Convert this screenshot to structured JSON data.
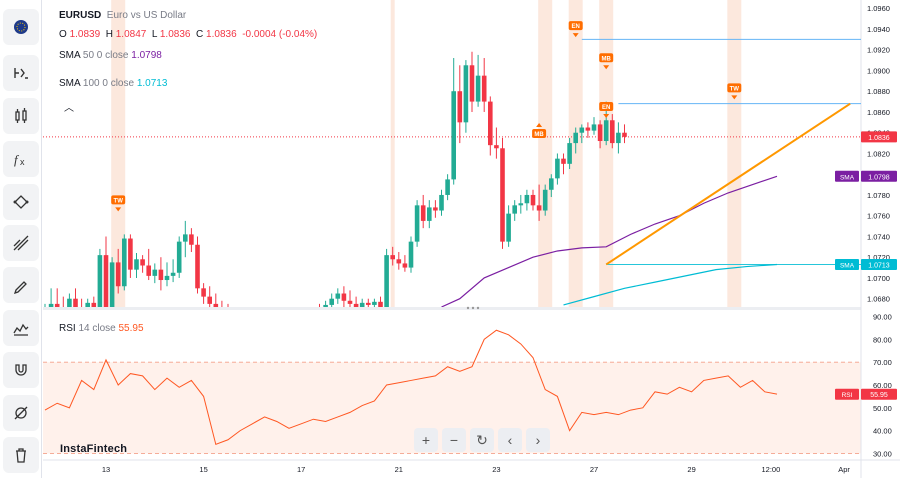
{
  "symbol": {
    "ticker": "EURUSD",
    "name": "Euro vs US Dollar",
    "flag": "eu-us-flag"
  },
  "ohlc": {
    "o_label": "O",
    "o": "1.0839",
    "h_label": "H",
    "h": "1.0847",
    "l_label": "L",
    "l": "1.0836",
    "c_label": "C",
    "c": "1.0836",
    "change": "-0.0004 (-0.04%)"
  },
  "sma50": {
    "label": "SMA",
    "params": "50 0 close",
    "value": "1.0798",
    "color": "#7b1fa2"
  },
  "sma100": {
    "label": "SMA",
    "params": "100 0 close",
    "value": "1.0713",
    "color": "#00bcd4"
  },
  "rsi": {
    "label": "RSI",
    "params": "14 close",
    "value": "55.95",
    "color": "#ff5722"
  },
  "collapse_icon": "chevron-up-icon",
  "brand": "InstaFintech",
  "sidebar_tools": [
    "flag-icon",
    "indicator-icon",
    "candles-icon",
    "fx-icon",
    "pattern-icon",
    "lines-icon",
    "brush-icon",
    "measure-icon",
    "magnet-icon",
    "hide-drawings-icon",
    "delete-icon"
  ],
  "nav_buttons": [
    "zoom-in-icon",
    "zoom-out-icon",
    "reset-icon",
    "scroll-left-icon",
    "scroll-right-icon"
  ],
  "chart_data": {
    "type": "candlestick",
    "price_ticks": [
      "1.0960",
      "1.0940",
      "1.0920",
      "1.0900",
      "1.0880",
      "1.0860",
      "1.0840",
      "1.0820",
      "1.0800",
      "1.0780",
      "1.0760",
      "1.0740",
      "1.0720",
      "1.0700",
      "1.0680"
    ],
    "price_range": [
      1.0672,
      1.0966
    ],
    "rsi_ticks": [
      "90.00",
      "80.00",
      "70.00",
      "60.00",
      "50.00",
      "40.00",
      "30.00"
    ],
    "rsi_range": [
      28,
      92
    ],
    "rsi_levels": [
      70,
      30
    ],
    "x_labels": [
      {
        "i": 10,
        "label": "13"
      },
      {
        "i": 26,
        "label": "15"
      },
      {
        "i": 42,
        "label": "17"
      },
      {
        "i": 58,
        "label": "21"
      },
      {
        "i": 74,
        "label": "23"
      },
      {
        "i": 90,
        "label": "27"
      },
      {
        "i": 106,
        "label": "29"
      },
      {
        "i": 119,
        "label": "12:00"
      },
      {
        "i": 131,
        "label": "Apr"
      }
    ],
    "last_price": {
      "value": 1.0836,
      "label": "1.0836",
      "color": "#f23645"
    },
    "sma_tags": [
      {
        "label": "SMA",
        "value": 1.0798,
        "text": "1.0798",
        "color": "#7b1fa2"
      },
      {
        "label": "SMA",
        "value": 1.0713,
        "text": "1.0713",
        "color": "#00bcd4"
      }
    ],
    "rsi_tag": {
      "label": "RSI",
      "value": 55.95,
      "text": "55.95",
      "color": "#f23645"
    },
    "candles": [
      [
        1.066,
        1.0675,
        1.0655,
        1.0668
      ],
      [
        1.0668,
        1.069,
        1.0662,
        1.0675
      ],
      [
        1.0675,
        1.069,
        1.0665,
        1.067
      ],
      [
        1.067,
        1.0682,
        1.066,
        1.0665
      ],
      [
        1.0665,
        1.0685,
        1.066,
        1.068
      ],
      [
        1.068,
        1.069,
        1.0665,
        1.067
      ],
      [
        1.067,
        1.068,
        1.065,
        1.0655
      ],
      [
        1.0655,
        1.068,
        1.065,
        1.0676
      ],
      [
        1.0676,
        1.0682,
        1.0655,
        1.066
      ],
      [
        1.066,
        1.0728,
        1.0658,
        1.0722
      ],
      [
        1.0722,
        1.074,
        1.065,
        1.066
      ],
      [
        1.066,
        1.072,
        1.065,
        1.0715
      ],
      [
        1.0715,
        1.0728,
        1.0685,
        1.0692
      ],
      [
        1.0692,
        1.0742,
        1.0688,
        1.0738
      ],
      [
        1.0738,
        1.0742,
        1.07,
        1.0708
      ],
      [
        1.0708,
        1.0724,
        1.07,
        1.0718
      ],
      [
        1.0718,
        1.0722,
        1.0705,
        1.0712
      ],
      [
        1.0712,
        1.0728,
        1.0698,
        1.0702
      ],
      [
        1.0702,
        1.0714,
        1.0695,
        1.0708
      ],
      [
        1.0708,
        1.072,
        1.0688,
        1.0698
      ],
      [
        1.0698,
        1.0715,
        1.0692,
        1.0702
      ],
      [
        1.0702,
        1.0718,
        1.0696,
        1.0705
      ],
      [
        1.0705,
        1.074,
        1.07,
        1.0735
      ],
      [
        1.0735,
        1.0755,
        1.072,
        1.0742
      ],
      [
        1.0742,
        1.0748,
        1.0725,
        1.0732
      ],
      [
        1.0732,
        1.074,
        1.0685,
        1.069
      ],
      [
        1.069,
        1.0695,
        1.0675,
        1.0682
      ],
      [
        1.0682,
        1.0692,
        1.0668,
        1.0675
      ],
      [
        1.0675,
        1.0685,
        1.0665,
        1.067
      ],
      [
        1.067,
        1.0678,
        1.066,
        1.0668
      ],
      [
        1.0668,
        1.0675,
        1.0655,
        1.0662
      ],
      [
        1.0662,
        1.067,
        1.065,
        1.0658
      ],
      [
        1.0658,
        1.0665,
        1.0645,
        1.0652
      ],
      [
        1.0652,
        1.066,
        1.064,
        1.0648
      ],
      [
        1.0648,
        1.0658,
        1.0638,
        1.065
      ],
      [
        1.065,
        1.066,
        1.0642,
        1.0655
      ],
      [
        1.0655,
        1.0662,
        1.0645,
        1.065
      ],
      [
        1.065,
        1.0658,
        1.064,
        1.0646
      ],
      [
        1.0646,
        1.0655,
        1.0638,
        1.065
      ],
      [
        1.065,
        1.066,
        1.0645,
        1.0656
      ],
      [
        1.0656,
        1.0665,
        1.0648,
        1.0652
      ],
      [
        1.0652,
        1.0662,
        1.0645,
        1.0658
      ],
      [
        1.0658,
        1.0668,
        1.065,
        1.0662
      ],
      [
        1.0662,
        1.067,
        1.0652,
        1.0658
      ],
      [
        1.0658,
        1.0672,
        1.0655,
        1.0668
      ],
      [
        1.0668,
        1.0675,
        1.066,
        1.0665
      ],
      [
        1.0665,
        1.0678,
        1.066,
        1.0674
      ],
      [
        1.0674,
        1.0685,
        1.0668,
        1.068
      ],
      [
        1.068,
        1.069,
        1.0675,
        1.0685
      ],
      [
        1.0685,
        1.0692,
        1.0672,
        1.0678
      ],
      [
        1.0678,
        1.0688,
        1.067,
        1.0675
      ],
      [
        1.0675,
        1.0682,
        1.0662,
        1.0668
      ],
      [
        1.0668,
        1.068,
        1.0662,
        1.0676
      ],
      [
        1.0676,
        1.068,
        1.067,
        1.0674
      ],
      [
        1.0674,
        1.068,
        1.0668,
        1.0677
      ],
      [
        1.0677,
        1.0682,
        1.067,
        1.0672
      ],
      [
        1.0672,
        1.0728,
        1.0668,
        1.0722
      ],
      [
        1.0722,
        1.073,
        1.0712,
        1.0718
      ],
      [
        1.0718,
        1.0725,
        1.0708,
        1.0714
      ],
      [
        1.0714,
        1.0722,
        1.0706,
        1.071
      ],
      [
        1.071,
        1.074,
        1.0705,
        1.0735
      ],
      [
        1.0735,
        1.0775,
        1.073,
        1.077
      ],
      [
        1.077,
        1.078,
        1.0748,
        1.0755
      ],
      [
        1.0755,
        1.0775,
        1.0748,
        1.0768
      ],
      [
        1.0768,
        1.0775,
        1.0758,
        1.0765
      ],
      [
        1.0765,
        1.0785,
        1.076,
        1.078
      ],
      [
        1.078,
        1.08,
        1.0775,
        1.0795
      ],
      [
        1.0795,
        1.0912,
        1.079,
        1.088
      ],
      [
        1.088,
        1.0905,
        1.083,
        1.085
      ],
      [
        1.085,
        1.091,
        1.084,
        1.0905
      ],
      [
        1.0905,
        1.0918,
        1.086,
        1.087
      ],
      [
        1.087,
        1.0915,
        1.0865,
        1.0895
      ],
      [
        1.0895,
        1.0912,
        1.086,
        1.087
      ],
      [
        1.087,
        1.0875,
        1.0818,
        1.0828
      ],
      [
        1.0828,
        1.0845,
        1.0815,
        1.0825
      ],
      [
        1.0825,
        1.0835,
        1.0728,
        1.0735
      ],
      [
        1.0735,
        1.077,
        1.073,
        1.0762
      ],
      [
        1.0762,
        1.0775,
        1.0755,
        1.077
      ],
      [
        1.077,
        1.078,
        1.0762,
        1.0772
      ],
      [
        1.0772,
        1.0785,
        1.0765,
        1.078
      ],
      [
        1.078,
        1.0785,
        1.0765,
        1.077
      ],
      [
        1.077,
        1.079,
        1.0755,
        1.0765
      ],
      [
        1.0765,
        1.079,
        1.076,
        1.0785
      ],
      [
        1.0785,
        1.08,
        1.0778,
        1.0796
      ],
      [
        1.0796,
        1.082,
        1.079,
        1.0815
      ],
      [
        1.0815,
        1.082,
        1.08,
        1.081
      ],
      [
        1.081,
        1.0835,
        1.0805,
        1.083
      ],
      [
        1.083,
        1.0845,
        1.082,
        1.084
      ],
      [
        1.084,
        1.0848,
        1.083,
        1.0845
      ],
      [
        1.0845,
        1.085,
        1.0835,
        1.0842
      ],
      [
        1.0842,
        1.0855,
        1.0838,
        1.0848
      ],
      [
        1.0848,
        1.0852,
        1.0825,
        1.0832
      ],
      [
        1.0832,
        1.087,
        1.0828,
        1.0852
      ],
      [
        1.0852,
        1.0858,
        1.0825,
        1.083
      ],
      [
        1.083,
        1.085,
        1.082,
        1.084
      ],
      [
        1.084,
        1.0848,
        1.083,
        1.0836
      ]
    ],
    "sma50_series": [
      [
        65,
        1.0672
      ],
      [
        68,
        1.068
      ],
      [
        72,
        1.07
      ],
      [
        76,
        1.071
      ],
      [
        80,
        1.072
      ],
      [
        84,
        1.0726
      ],
      [
        88,
        1.0729
      ],
      [
        92,
        1.073
      ],
      [
        96,
        1.0742
      ],
      [
        100,
        1.0752
      ],
      [
        104,
        1.076
      ],
      [
        108,
        1.0772
      ],
      [
        112,
        1.0782
      ],
      [
        116,
        1.079
      ],
      [
        120,
        1.0798
      ]
    ],
    "sma100_series": [
      [
        85,
        1.0674
      ],
      [
        90,
        1.0682
      ],
      [
        95,
        1.069
      ],
      [
        100,
        1.0696
      ],
      [
        105,
        1.0702
      ],
      [
        110,
        1.0708
      ],
      [
        115,
        1.0711
      ],
      [
        120,
        1.0713
      ]
    ],
    "rsi_series": [
      [
        0,
        49
      ],
      [
        2,
        52
      ],
      [
        4,
        50
      ],
      [
        6,
        62
      ],
      [
        8,
        58
      ],
      [
        10,
        71
      ],
      [
        12,
        60
      ],
      [
        14,
        65
      ],
      [
        16,
        64
      ],
      [
        18,
        58
      ],
      [
        20,
        63
      ],
      [
        22,
        59
      ],
      [
        24,
        62
      ],
      [
        26,
        55
      ],
      [
        28,
        34
      ],
      [
        30,
        36
      ],
      [
        32,
        40
      ],
      [
        34,
        43
      ],
      [
        36,
        46
      ],
      [
        38,
        44
      ],
      [
        40,
        41
      ],
      [
        42,
        43
      ],
      [
        44,
        45
      ],
      [
        46,
        44
      ],
      [
        48,
        46
      ],
      [
        50,
        48
      ],
      [
        52,
        51
      ],
      [
        54,
        53
      ],
      [
        56,
        60
      ],
      [
        58,
        61
      ],
      [
        60,
        62
      ],
      [
        62,
        63
      ],
      [
        64,
        64
      ],
      [
        66,
        68
      ],
      [
        68,
        66
      ],
      [
        70,
        68
      ],
      [
        72,
        80
      ],
      [
        74,
        84
      ],
      [
        76,
        82
      ],
      [
        78,
        78
      ],
      [
        80,
        72
      ],
      [
        82,
        58
      ],
      [
        84,
        55
      ],
      [
        86,
        40
      ],
      [
        88,
        48
      ],
      [
        90,
        47
      ],
      [
        92,
        48
      ],
      [
        94,
        47
      ],
      [
        96,
        49
      ],
      [
        98,
        50
      ],
      [
        100,
        57
      ],
      [
        102,
        56
      ],
      [
        104,
        59
      ],
      [
        106,
        57
      ],
      [
        108,
        62
      ],
      [
        110,
        63
      ],
      [
        112,
        64
      ],
      [
        114,
        59
      ],
      [
        116,
        62
      ],
      [
        118,
        57
      ],
      [
        120,
        56
      ]
    ],
    "trendline": {
      "from": [
        92,
        1.0713
      ],
      "to": [
        132,
        1.0868
      ],
      "color": "#ff9800"
    },
    "hlines": [
      {
        "y": 1.093,
        "from": 88,
        "to": 140,
        "color": "#64b5f6"
      },
      {
        "y": 1.0868,
        "from": 94,
        "to": 140,
        "color": "#64b5f6"
      },
      {
        "y": 1.0713,
        "from": 92,
        "to": 140,
        "color": "#26c6da"
      }
    ],
    "event_bands": [
      {
        "i": 12,
        "label": "TW"
      },
      {
        "i": 57,
        "label": ""
      },
      {
        "i": 82,
        "label": "MB"
      },
      {
        "i": 87,
        "label": "EN"
      },
      {
        "i": 92,
        "label": "MB / EN"
      },
      {
        "i": 113,
        "label": "TW"
      }
    ],
    "markers": [
      {
        "i": 12,
        "price": 1.0768,
        "label": "TW",
        "dir": "down"
      },
      {
        "i": 87,
        "price": 1.0936,
        "label": "EN",
        "dir": "down"
      },
      {
        "i": 81,
        "price": 1.0832,
        "label": "MB",
        "dir": "up"
      },
      {
        "i": 92,
        "price": 1.0905,
        "label": "MB",
        "dir": "down"
      },
      {
        "i": 92,
        "price": 1.0858,
        "label": "EN",
        "dir": "down"
      },
      {
        "i": 113,
        "price": 1.0876,
        "label": "TW",
        "dir": "down"
      }
    ]
  }
}
